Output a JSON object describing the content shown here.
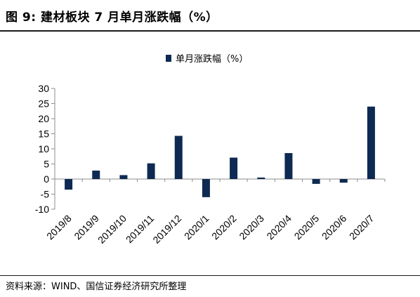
{
  "figure": {
    "title": "图 9:  建材板块 7 月单月涨跌幅（%）",
    "source": "资料来源：WIND、国信证券经济研究所整理"
  },
  "chart_data": {
    "type": "bar",
    "title": "",
    "legend": {
      "label": "单月涨跌幅（%）",
      "position": "top-center"
    },
    "categories": [
      "2019/8",
      "2019/9",
      "2019/10",
      "2019/11",
      "2019/12",
      "2020/1",
      "2020/2",
      "2020/3",
      "2020/4",
      "2020/5",
      "2020/6",
      "2020/7"
    ],
    "series": [
      {
        "name": "单月涨跌幅（%）",
        "values": [
          -3.5,
          2.8,
          1.3,
          5.2,
          14.3,
          -6.0,
          7.1,
          0.5,
          8.6,
          -1.6,
          -1.2,
          24.0
        ]
      }
    ],
    "ylim": [
      -10,
      30
    ],
    "yticks": [
      30,
      25,
      20,
      15,
      10,
      5,
      0,
      -5,
      -10
    ],
    "xlabel": "",
    "ylabel": "",
    "grid": false,
    "bar_color": "#0e2a52"
  }
}
